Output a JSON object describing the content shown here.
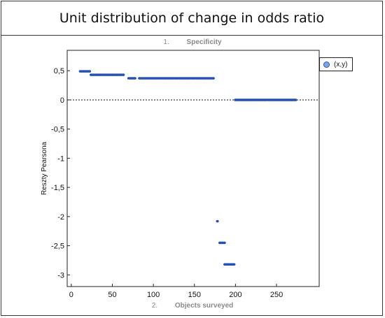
{
  "chart_data": {
    "type": "scatter",
    "title": "Unit distribution of change in odds ratio",
    "subtitle_number": "1.",
    "subtitle": "Specificity",
    "xlabel_number": "2.",
    "xlabel": "Objects surveyed",
    "ylabel": "Reszty Pearsona",
    "legend": [
      "(x,y)"
    ],
    "xlim": [
      -5,
      302
    ],
    "ylim": [
      -3.2,
      0.85
    ],
    "xticks": [
      0,
      50,
      100,
      150,
      200,
      250
    ],
    "yticks": [
      0.5,
      0,
      -0.5,
      -1,
      -1.5,
      -2,
      -2.5,
      -3
    ],
    "ytick_labels": [
      "0,5",
      "0",
      "-0,5",
      "-1",
      "-1,5",
      "-2",
      "-2,5",
      "-3"
    ],
    "reference_line_y": 0,
    "grid": false,
    "marker_color": "#2451b6",
    "segments": [
      {
        "x_start": 11,
        "x_end": 23,
        "y": 0.49
      },
      {
        "x_start": 24,
        "x_end": 64,
        "y": 0.43
      },
      {
        "x_start": 70,
        "x_end": 78,
        "y": 0.37
      },
      {
        "x_start": 83,
        "x_end": 174,
        "y": 0.37
      },
      {
        "x_start": 178,
        "x_end": 178,
        "y": -2.08
      },
      {
        "x_start": 181,
        "x_end": 187,
        "y": -2.45
      },
      {
        "x_start": 187,
        "x_end": 199,
        "y": -2.82
      },
      {
        "x_start": 200,
        "x_end": 274,
        "y": 0.0
      }
    ]
  }
}
